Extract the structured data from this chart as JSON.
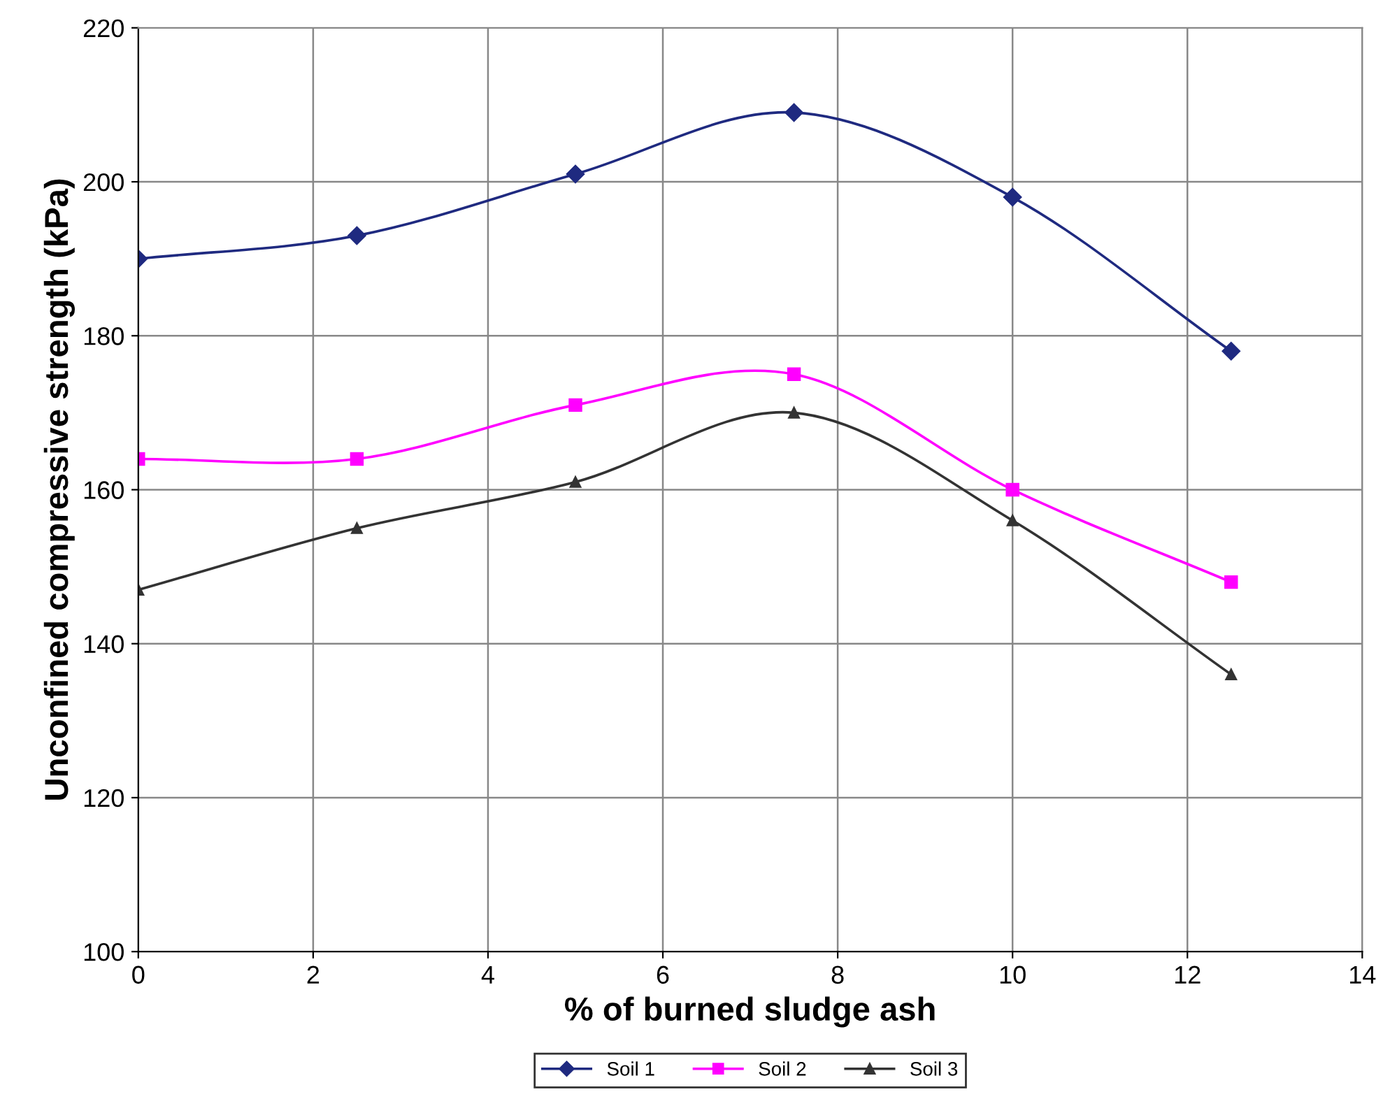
{
  "chart_data": {
    "type": "line",
    "xlabel": "% of burned sludge ash",
    "ylabel": "Unconfined compressive strength (kPa)",
    "x": [
      0,
      2.5,
      5,
      7.5,
      10,
      12.5
    ],
    "series": [
      {
        "name": "Soil 1",
        "color": "#1f2a80",
        "marker": "diamond",
        "values": [
          190,
          193,
          201,
          209,
          198,
          178
        ]
      },
      {
        "name": "Soil 2",
        "color": "#ff00ff",
        "marker": "square",
        "values": [
          164,
          164,
          171,
          175,
          160,
          148
        ]
      },
      {
        "name": "Soil 3",
        "color": "#333333",
        "marker": "triangle",
        "values": [
          147,
          155,
          161,
          170,
          156,
          136
        ]
      }
    ],
    "xlim": [
      0,
      14
    ],
    "xticks": [
      0,
      2,
      4,
      6,
      8,
      10,
      12,
      14
    ],
    "ylim": [
      100,
      220
    ],
    "yticks": [
      100,
      120,
      140,
      160,
      180,
      200,
      220
    ],
    "grid": true,
    "legend": "bottom",
    "line_style": "solid"
  }
}
